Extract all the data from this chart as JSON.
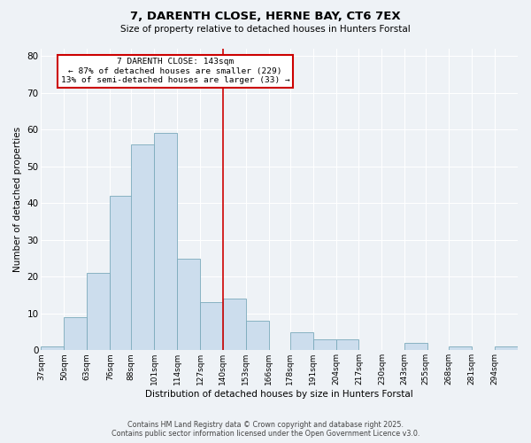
{
  "title": "7, DARENTH CLOSE, HERNE BAY, CT6 7EX",
  "subtitle": "Size of property relative to detached houses in Hunters Forstal",
  "xlabel": "Distribution of detached houses by size in Hunters Forstal",
  "ylabel": "Number of detached properties",
  "bin_labels": [
    "37sqm",
    "50sqm",
    "63sqm",
    "76sqm",
    "88sqm",
    "101sqm",
    "114sqm",
    "127sqm",
    "140sqm",
    "153sqm",
    "166sqm",
    "178sqm",
    "191sqm",
    "204sqm",
    "217sqm",
    "230sqm",
    "243sqm",
    "255sqm",
    "268sqm",
    "281sqm",
    "294sqm"
  ],
  "bin_edges": [
    37,
    50,
    63,
    76,
    88,
    101,
    114,
    127,
    140,
    153,
    166,
    178,
    191,
    204,
    217,
    230,
    243,
    255,
    268,
    281,
    294
  ],
  "bar_heights": [
    1,
    9,
    21,
    42,
    56,
    59,
    25,
    13,
    14,
    8,
    0,
    5,
    3,
    3,
    0,
    0,
    2,
    0,
    1,
    0,
    1
  ],
  "bar_facecolor": "#ccdded",
  "bar_edgecolor": "#7aaabb",
  "vline_x": 140,
  "vline_color": "#cc0000",
  "annotation_title": "7 DARENTH CLOSE: 143sqm",
  "annotation_line1": "← 87% of detached houses are smaller (229)",
  "annotation_line2": "13% of semi-detached houses are larger (33) →",
  "annotation_box_edgecolor": "#cc0000",
  "ylim": [
    0,
    82
  ],
  "yticks": [
    0,
    10,
    20,
    30,
    40,
    50,
    60,
    70,
    80
  ],
  "bg_color": "#eef2f6",
  "plot_bg_color": "#eef2f6",
  "grid_color": "#ffffff",
  "footnote1": "Contains HM Land Registry data © Crown copyright and database right 2025.",
  "footnote2": "Contains public sector information licensed under the Open Government Licence v3.0."
}
